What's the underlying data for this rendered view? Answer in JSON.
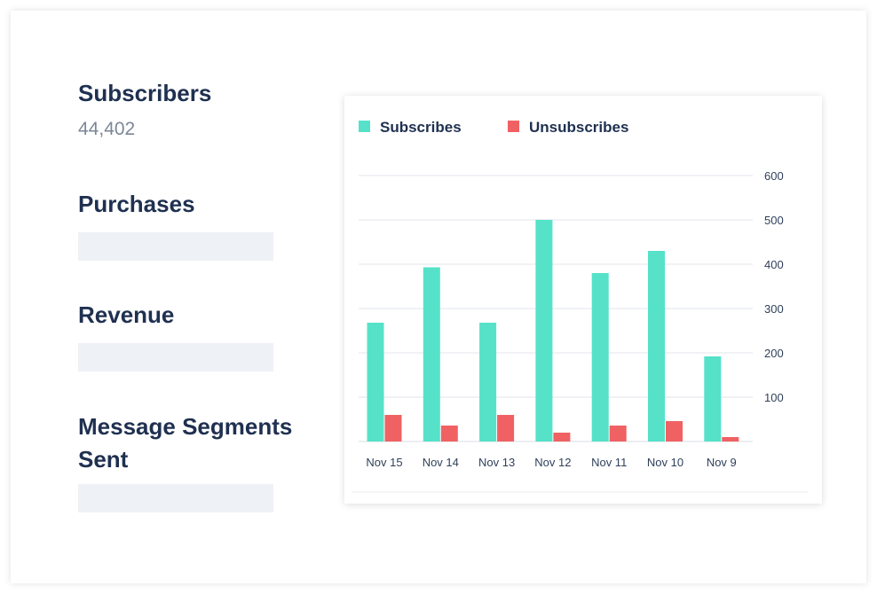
{
  "metrics": {
    "subscribers": {
      "title": "Subscribers",
      "value": "44,402"
    },
    "purchases": {
      "title": "Purchases"
    },
    "revenue": {
      "title": "Revenue"
    },
    "segments": {
      "title_line1": "Message Segments",
      "title_line2": "Sent"
    }
  },
  "colors": {
    "subscribes": "#55e2c9",
    "unsubscribes": "#f06163"
  },
  "chart_data": {
    "type": "bar",
    "categories": [
      "Nov 15",
      "Nov 14",
      "Nov 13",
      "Nov 12",
      "Nov 11",
      "Nov 10",
      "Nov 9"
    ],
    "series": [
      {
        "name": "Subscribes",
        "values": [
          268,
          393,
          268,
          500,
          380,
          430,
          192
        ]
      },
      {
        "name": "Unsubscribes",
        "values": [
          60,
          36,
          60,
          20,
          36,
          46,
          10
        ]
      }
    ],
    "yticks": [
      100,
      200,
      300,
      400,
      500,
      600
    ],
    "ylim": [
      0,
      600
    ],
    "grid": true,
    "legend": "top-left",
    "yaxis_side": "right"
  }
}
